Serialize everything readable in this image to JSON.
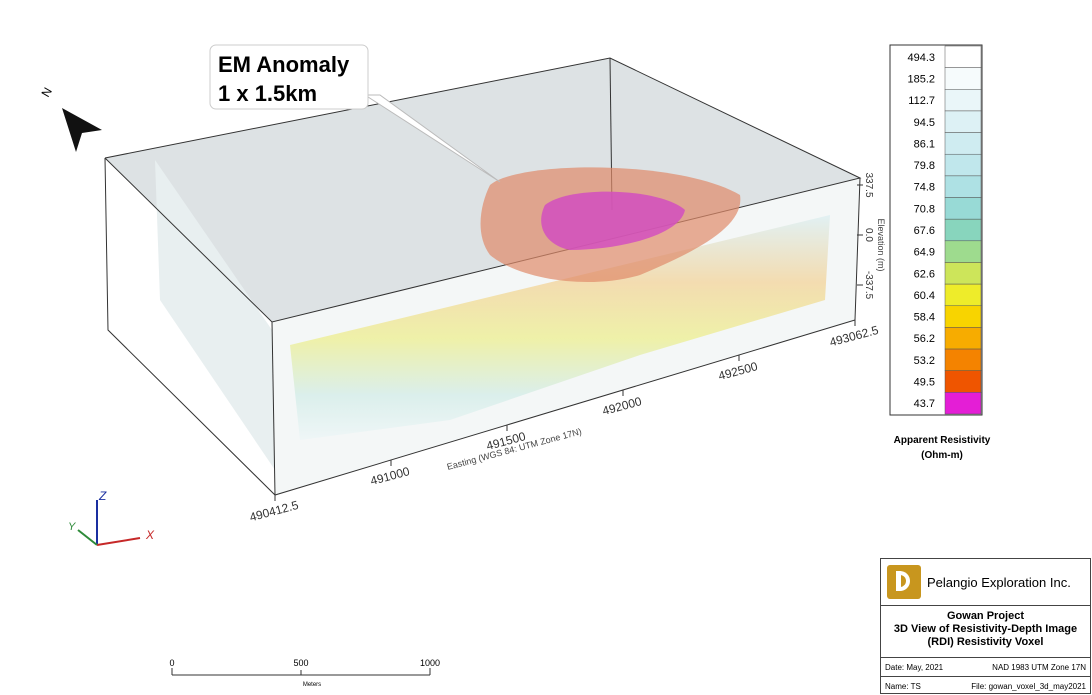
{
  "callout": {
    "title": "EM Anomaly",
    "subtitle": "1 x 1.5km"
  },
  "north_label": "N",
  "axes": {
    "easting_ticks": [
      "490412.5",
      "491000",
      "491500",
      "492000",
      "492500",
      "493062.5"
    ],
    "easting_label": "Easting (WGS 84: UTM Zone 17N)",
    "elevation_ticks": [
      "337.5",
      "0.0",
      "-337.5"
    ],
    "elevation_label": "Elevation (m)"
  },
  "legend": {
    "entries": [
      {
        "label": "494.3",
        "color": "#ffffff"
      },
      {
        "label": "185.2",
        "color": "#f6fbfc"
      },
      {
        "label": "112.7",
        "color": "#eaf6f9"
      },
      {
        "label": "94.5",
        "color": "#ddf1f5"
      },
      {
        "label": "86.1",
        "color": "#cfecf1"
      },
      {
        "label": "79.8",
        "color": "#c0e7ec"
      },
      {
        "label": "74.8",
        "color": "#aee1e4"
      },
      {
        "label": "70.8",
        "color": "#98dad6"
      },
      {
        "label": "67.6",
        "color": "#88d5bd"
      },
      {
        "label": "64.9",
        "color": "#9edb8e"
      },
      {
        "label": "62.6",
        "color": "#cde55a"
      },
      {
        "label": "60.4",
        "color": "#eeec2a"
      },
      {
        "label": "58.4",
        "color": "#f8d400"
      },
      {
        "label": "56.2",
        "color": "#f7ac00"
      },
      {
        "label": "53.2",
        "color": "#f48300"
      },
      {
        "label": "49.5",
        "color": "#ef5500"
      },
      {
        "label": "43.7",
        "color": "#e41ed6"
      }
    ],
    "title": "Apparent Resistivity",
    "unit": "(Ohm-m)"
  },
  "triad": {
    "z": "Z",
    "y": "Y",
    "x": "X"
  },
  "scale_bar": {
    "ticks": [
      "0",
      "500",
      "1000"
    ],
    "unit": "Meters"
  },
  "title_block": {
    "company": "Pelangio Exploration Inc.",
    "project": "Gowan Project",
    "line1": "3D View of Resistivity-Depth Image",
    "line2": "(RDI) Resistivity Voxel",
    "date": "Date: May, 2021",
    "datum": "NAD 1983 UTM Zone 17N",
    "name": "Name: TS",
    "file": "File: gowan_voxel_3d_may2021"
  }
}
